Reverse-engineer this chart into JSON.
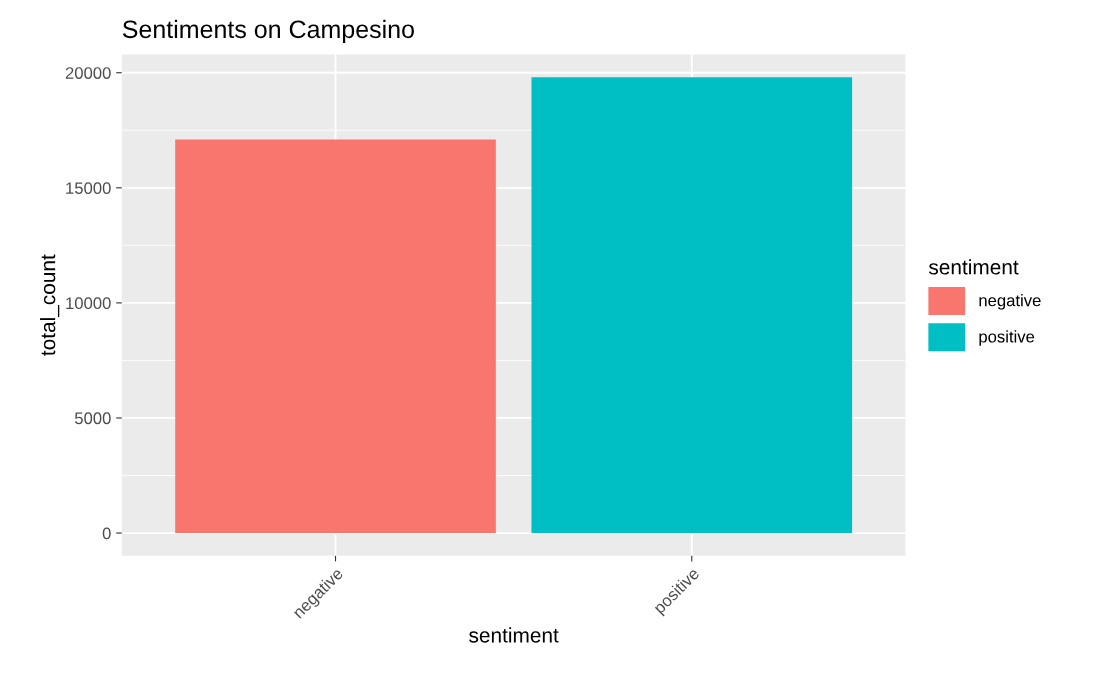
{
  "chart_data": {
    "type": "bar",
    "title": "Sentiments on Campesino",
    "xlabel": "sentiment",
    "ylabel": "total_count",
    "legend_title": "sentiment",
    "categories": [
      "negative",
      "positive"
    ],
    "series": [
      {
        "name": "negative",
        "color": "#f8766d",
        "values": [
          17100,
          null
        ]
      },
      {
        "name": "positive",
        "color": "#00bfc4",
        "values": [
          null,
          19800
        ]
      }
    ],
    "ylim": [
      -990,
      20790
    ],
    "yticks": [
      0,
      5000,
      10000,
      15000,
      20000
    ],
    "grid": true,
    "legend": "right"
  }
}
